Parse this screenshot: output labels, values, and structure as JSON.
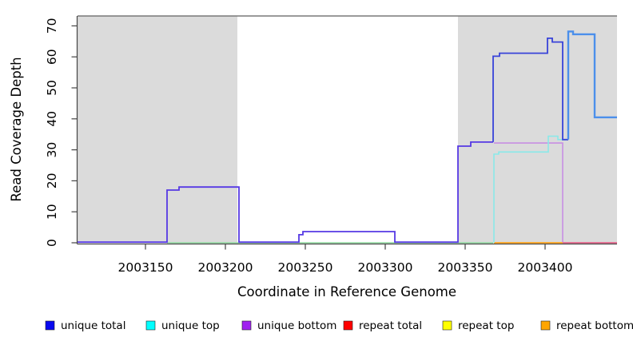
{
  "chart_data": {
    "type": "line",
    "subtype": "step-coverage-plot",
    "title": "",
    "xlabel": "Coordinate in Reference Genome",
    "ylabel": "Read Coverage Depth",
    "xlim": [
      2003107.5,
      2003445
    ],
    "ylim": [
      0,
      73.2
    ],
    "x_ticks": [
      2003150,
      2003200,
      2003250,
      2003300,
      2003350,
      2003400
    ],
    "x_tick_labels": [
      "2003150",
      "2003200",
      "2003250",
      "2003300",
      "2003350",
      "2003400"
    ],
    "y_ticks": [
      0,
      10,
      20,
      30,
      40,
      50,
      60,
      70
    ],
    "y_tick_labels": [
      "0",
      "10",
      "20",
      "30",
      "40",
      "50",
      "60",
      "70"
    ],
    "grid": false,
    "background_color": "#ffffff",
    "axis_color": "#444444",
    "shaded_regions": [
      {
        "x0": 2003107.5,
        "x1": 2003207.5,
        "color": "#dbdbdb"
      },
      {
        "x0": 2003345.5,
        "x1": 2003445.0,
        "color": "#dbdbdb"
      }
    ],
    "top_reference_line": {
      "y": 73.2,
      "color": "#787878"
    },
    "series": [
      {
        "name": "baseline-green",
        "color": "#8ed89d",
        "width": 1.4,
        "points": [
          [
            2003163.5,
            0
          ],
          [
            2003367.5,
            0
          ]
        ]
      },
      {
        "name": "repeat-bottom-line",
        "color": "#ffa31c",
        "width": 1.8,
        "points": [
          [
            2003368,
            0
          ],
          [
            2003411,
            0
          ]
        ]
      },
      {
        "name": "repeat-total-line",
        "color": "#e4517d",
        "width": 1.6,
        "points": [
          [
            2003411,
            0
          ],
          [
            2003445,
            0
          ]
        ]
      },
      {
        "name": "unique-bottom",
        "color": "#c78fe3",
        "width": 1.6,
        "points": [
          [
            2003368,
            32.2
          ],
          [
            2003411,
            32.2
          ],
          [
            2003411,
            0.2
          ]
        ]
      },
      {
        "name": "unique-top",
        "color": "#89e9e9",
        "width": 1.6,
        "points": [
          [
            2003368,
            0
          ],
          [
            2003368,
            28.6
          ],
          [
            2003371,
            28.6
          ],
          [
            2003371,
            29.3
          ],
          [
            2003402,
            29.3
          ],
          [
            2003402,
            34.4
          ],
          [
            2003408,
            34.4
          ],
          [
            2003408,
            33.3
          ],
          [
            2003414.5,
            33.3
          ]
        ]
      },
      {
        "name": "unique-total-left",
        "color": "#5639e4",
        "width": 1.8,
        "points": [
          [
            2003107.5,
            0.2
          ],
          [
            2003163.5,
            0.2
          ],
          [
            2003163.5,
            17
          ],
          [
            2003171,
            17
          ],
          [
            2003171,
            18
          ],
          [
            2003208.5,
            18
          ],
          [
            2003208.5,
            0.2
          ],
          [
            2003246,
            0.2
          ],
          [
            2003246,
            2.6
          ],
          [
            2003248.5,
            2.6
          ],
          [
            2003248.5,
            3.6
          ],
          [
            2003306,
            3.6
          ],
          [
            2003306,
            0.2
          ],
          [
            2003345.5,
            0.2
          ],
          [
            2003345.5,
            31.2
          ],
          [
            2003353.5,
            31.2
          ],
          [
            2003353.5,
            32.5
          ],
          [
            2003367.5,
            32.5
          ]
        ]
      },
      {
        "name": "unique-total-right",
        "color": "#3843d9",
        "width": 1.8,
        "points": [
          [
            2003367.5,
            32.5
          ],
          [
            2003367.5,
            60.2
          ],
          [
            2003371.5,
            60.2
          ],
          [
            2003371.5,
            61.2
          ],
          [
            2003401.5,
            61.2
          ],
          [
            2003401.5,
            66
          ],
          [
            2003404.5,
            66
          ],
          [
            2003404.5,
            64.8
          ],
          [
            2003411,
            64.8
          ],
          [
            2003411,
            33.3
          ],
          [
            2003414.5,
            33.3
          ]
        ]
      },
      {
        "name": "unique-total-peak",
        "color": "#4b8feb",
        "width": 2.4,
        "points": [
          [
            2003414.5,
            33.3
          ],
          [
            2003414.5,
            68.2
          ],
          [
            2003417.5,
            68.2
          ],
          [
            2003417.5,
            67.3
          ],
          [
            2003431,
            67.3
          ],
          [
            2003431,
            40.5
          ],
          [
            2003445,
            40.5
          ]
        ]
      }
    ],
    "legend": {
      "position": "bottom",
      "items": [
        {
          "label": "unique total",
          "color": "#0808f0"
        },
        {
          "label": "unique top",
          "color": "#00ffff"
        },
        {
          "label": "unique bottom",
          "color": "#a020f0"
        },
        {
          "label": "repeat total",
          "color": "#ff0000"
        },
        {
          "label": "repeat top",
          "color": "#ffff00"
        },
        {
          "label": "repeat bottom",
          "color": "#ffa500"
        }
      ]
    }
  }
}
